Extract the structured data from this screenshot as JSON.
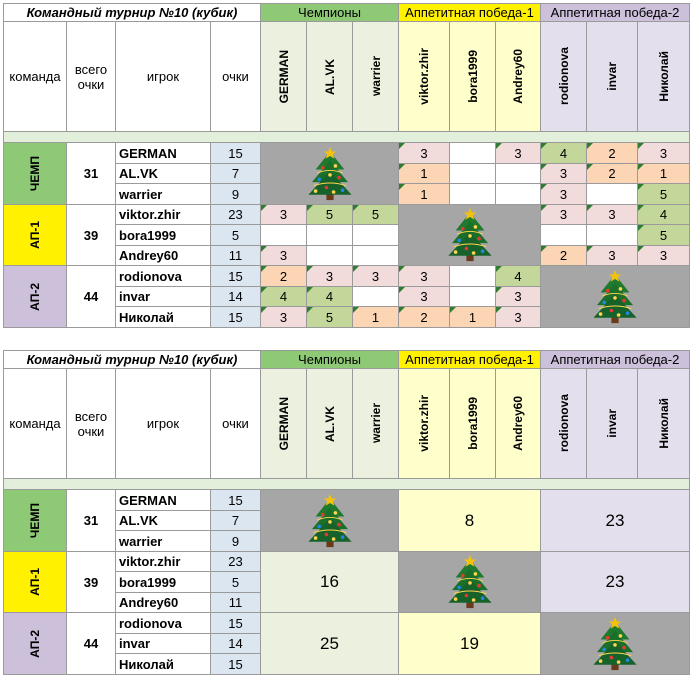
{
  "colors": {
    "chemp": "#8ec976",
    "ap1": "#fff100",
    "ap2": "#ccc0da",
    "header_chemp_bg": "#ebf1de",
    "header_ap1_bg": "#ffffcc",
    "header_ap2_bg": "#e4dfec",
    "separator": "#e2efda",
    "points": "#dce6f1",
    "pink": "#f2dcdb",
    "orange": "#fcd5b4",
    "green": "#c4d79b",
    "gray": "#a6a6a6"
  },
  "tables": [
    {
      "title": "Командный турнир №10 (кубик)",
      "group_headers": [
        "Чемпионы",
        "Аппетитная победа-1",
        "Аппетитная победа-2"
      ],
      "col_headers": {
        "team": "команда",
        "total": "всего очки",
        "player": "игрок",
        "points": "очки"
      },
      "opponents": [
        "GERMAN",
        "AL.VK",
        "warrier",
        "viktor.zhir",
        "bora1999",
        "Andrey60",
        "rodionova",
        "invar",
        "Николай"
      ],
      "teams": [
        {
          "name": "ЧЕМП",
          "total": "31"
        },
        {
          "name": "АП-1",
          "total": "39"
        },
        {
          "name": "АП-2",
          "total": "44"
        }
      ],
      "rows": [
        {
          "player": "GERMAN",
          "points": "15",
          "cells": [
            "",
            "",
            "",
            "3",
            "",
            "3",
            "4",
            "2",
            "3"
          ]
        },
        {
          "player": "AL.VK",
          "points": "7",
          "cells": [
            "",
            "",
            "",
            "1",
            "",
            "",
            "3",
            "2",
            "1"
          ]
        },
        {
          "player": "warrier",
          "points": "9",
          "cells": [
            "",
            "",
            "",
            "1",
            "",
            "",
            "3",
            "",
            "5"
          ]
        },
        {
          "player": "viktor.zhir",
          "points": "23",
          "cells": [
            "3",
            "5",
            "5",
            "",
            "",
            "",
            "3",
            "3",
            "4"
          ]
        },
        {
          "player": "bora1999",
          "points": "5",
          "cells": [
            "",
            "",
            "",
            "",
            "",
            "",
            "",
            "",
            "5"
          ]
        },
        {
          "player": "Andrey60",
          "points": "11",
          "cells": [
            "3",
            "",
            "",
            "",
            "",
            "",
            "2",
            "3",
            "3"
          ]
        },
        {
          "player": "rodionova",
          "points": "15",
          "cells": [
            "2",
            "3",
            "3",
            "3",
            "",
            "4",
            "",
            "",
            ""
          ]
        },
        {
          "player": "invar",
          "points": "14",
          "cells": [
            "4",
            "4",
            "",
            "3",
            "",
            "3",
            "",
            "",
            ""
          ]
        },
        {
          "player": "Николай",
          "points": "15",
          "cells": [
            "3",
            "5",
            "1",
            "2",
            "1",
            "3",
            "",
            "",
            ""
          ]
        }
      ]
    },
    {
      "title": "Командный турнир №10 (кубик)",
      "group_headers": [
        "Чемпионы",
        "Аппетитная победа-1",
        "Аппетитная победа-2"
      ],
      "col_headers": {
        "team": "команда",
        "total": "всего очки",
        "player": "игрок",
        "points": "очки"
      },
      "opponents": [
        "GERMAN",
        "AL.VK",
        "warrier",
        "viktor.zhir",
        "bora1999",
        "Andrey60",
        "rodionova",
        "invar",
        "Николай"
      ],
      "teams": [
        {
          "name": "ЧЕМП",
          "total": "31"
        },
        {
          "name": "АП-1",
          "total": "39"
        },
        {
          "name": "АП-2",
          "total": "44"
        }
      ],
      "rows": [
        {
          "player": "GERMAN",
          "points": "15"
        },
        {
          "player": "AL.VK",
          "points": "7"
        },
        {
          "player": "warrier",
          "points": "9"
        },
        {
          "player": "viktor.zhir",
          "points": "23"
        },
        {
          "player": "bora1999",
          "points": "5"
        },
        {
          "player": "Andrey60",
          "points": "11"
        },
        {
          "player": "rodionova",
          "points": "15"
        },
        {
          "player": "invar",
          "points": "14"
        },
        {
          "player": "Николай",
          "points": "15"
        }
      ],
      "block_sums": [
        [
          "",
          "8",
          "23"
        ],
        [
          "16",
          "",
          "23"
        ],
        [
          "25",
          "19",
          ""
        ]
      ]
    }
  ],
  "icons": {
    "tree": "christmas-tree-icon"
  }
}
